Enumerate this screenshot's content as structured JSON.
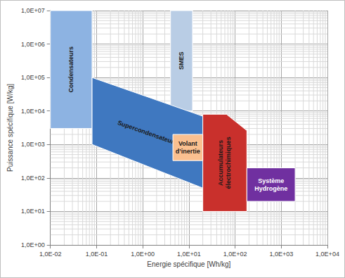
{
  "chart_data": {
    "type": "region",
    "log": true,
    "grid": true,
    "x_label": "Energie spécifique [Wh/kg]",
    "y_label": "Puissance spécifique [W/kg]",
    "xlim": [
      0.01,
      10000
    ],
    "ylim": [
      1,
      10000000
    ],
    "xticks": [
      {
        "value": 0.01,
        "label": "1,0E-02"
      },
      {
        "value": 0.1,
        "label": "1,0E-01"
      },
      {
        "value": 1,
        "label": "1,0E+00"
      },
      {
        "value": 10,
        "label": "1,0E+01"
      },
      {
        "value": 100,
        "label": "1,0E+02"
      },
      {
        "value": 1000,
        "label": "1,0E+03"
      },
      {
        "value": 10000,
        "label": "1,0E+04"
      }
    ],
    "yticks": [
      {
        "value": 1,
        "label": "1,0E+00"
      },
      {
        "value": 10,
        "label": "1,0E+01"
      },
      {
        "value": 100,
        "label": "1,0E+02"
      },
      {
        "value": 1000,
        "label": "1,0E+03"
      },
      {
        "value": 10000,
        "label": "1,0E+04"
      },
      {
        "value": 100000,
        "label": "1,0E+05"
      },
      {
        "value": 1000000,
        "label": "1,0E+06"
      },
      {
        "value": 10000000,
        "label": "1,0E+07"
      }
    ],
    "series": [
      {
        "name": "Condensateurs",
        "color": "#8db3e2",
        "points": [
          [
            0.01,
            3000
          ],
          [
            0.08,
            3000
          ],
          [
            0.08,
            10000000
          ],
          [
            0.01,
            10000000
          ]
        ]
      },
      {
        "name": "SMES",
        "color": "#b9cde5",
        "points": [
          [
            4,
            10000
          ],
          [
            12,
            10000
          ],
          [
            12,
            10000000
          ],
          [
            4,
            10000000
          ]
        ]
      },
      {
        "name": "Supercondensateurs",
        "color": "#3f78c0",
        "points": [
          [
            0.08,
            1000
          ],
          [
            0.08,
            100000
          ],
          [
            20,
            7000
          ],
          [
            20,
            50
          ]
        ]
      },
      {
        "name": "Accumulateurs\nélectrochimiques",
        "color": "#c9302c",
        "points": [
          [
            20,
            10
          ],
          [
            20,
            8000
          ],
          [
            65,
            8000
          ],
          [
            180,
            2600
          ],
          [
            180,
            10
          ]
        ]
      },
      {
        "name": "Volant\nd’inertie",
        "color": "#fac090",
        "points": [
          [
            4.5,
            330
          ],
          [
            20,
            330
          ],
          [
            20,
            2000
          ],
          [
            4.5,
            2000
          ]
        ]
      },
      {
        "name": "Système\nHydrogène",
        "color": "#7030a0",
        "points": [
          [
            180,
            20
          ],
          [
            2000,
            20
          ],
          [
            2000,
            200
          ],
          [
            180,
            200
          ]
        ]
      }
    ]
  }
}
